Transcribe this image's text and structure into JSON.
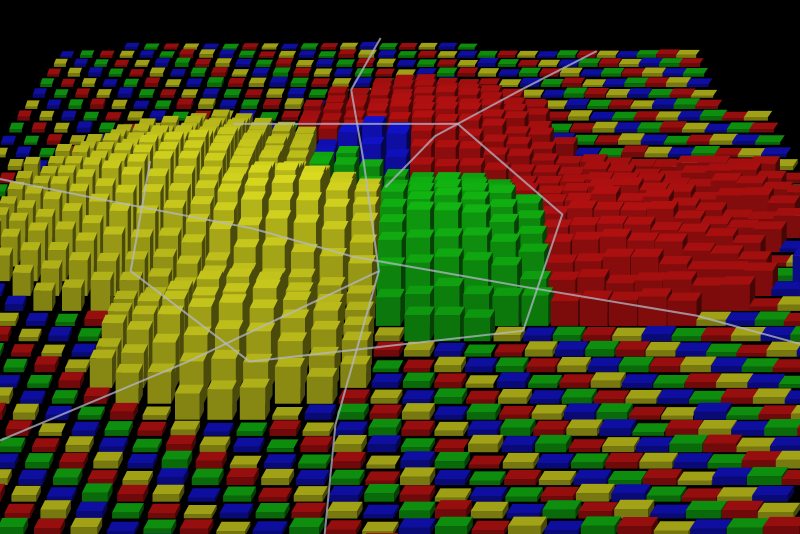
{
  "view": {
    "type": "3d-extruded-grid-map",
    "background": "#000000",
    "legend": "none",
    "grid_lines": "off"
  },
  "palette": {
    "red": "#c41212",
    "green": "#12b812",
    "blue": "#1212d0",
    "yellow": "#d2d21e",
    "road": "#b4b8c8"
  },
  "map_data": {
    "rows": 38,
    "cols": 34,
    "height_unit": "relative",
    "hotspots": [
      {
        "name": "yellow-ridge-west",
        "row": 16,
        "col": 9,
        "radius": 4.6,
        "peak": 0.75,
        "color": "yellow"
      },
      {
        "name": "yellow-ridge-central",
        "row": 19,
        "col": 13,
        "radius": 3.6,
        "peak": 0.9,
        "color": "yellow"
      },
      {
        "name": "yellow-ridge-south",
        "row": 25,
        "col": 12,
        "radius": 3.0,
        "peak": 0.6,
        "color": "yellow"
      },
      {
        "name": "green-band-east",
        "row": 19,
        "col": 19,
        "radius": 3.4,
        "peak": 0.75,
        "color": "green"
      },
      {
        "name": "green-band-north",
        "row": 15,
        "col": 15,
        "radius": 2.6,
        "peak": 0.55,
        "color": "green"
      },
      {
        "name": "blue-core",
        "row": 13,
        "col": 16,
        "radius": 1.8,
        "peak": 0.7,
        "color": "blue"
      },
      {
        "name": "red-belt-north",
        "row": 11,
        "col": 18,
        "radius": 4.2,
        "peak": 0.5,
        "color": "red"
      },
      {
        "name": "red-belt-east",
        "row": 18,
        "col": 25,
        "radius": 4.5,
        "peak": 0.45,
        "color": "red"
      },
      {
        "name": "red-belt-far-east",
        "row": 15,
        "col": 30,
        "radius": 3.0,
        "peak": 0.3,
        "color": "red"
      },
      {
        "name": "blue-far-east",
        "row": 21,
        "col": 33,
        "radius": 1.2,
        "peak": 0.45,
        "color": "blue"
      }
    ],
    "roads": [
      {
        "name": "road-north",
        "points": [
          [
            0,
            16
          ],
          [
            6,
            15
          ],
          [
            12,
            16
          ],
          [
            20,
            17
          ],
          [
            30,
            16
          ],
          [
            37,
            16
          ]
        ]
      },
      {
        "name": "road-west",
        "points": [
          [
            13,
            0
          ],
          [
            15,
            6
          ],
          [
            17,
            12
          ],
          [
            19,
            16
          ]
        ]
      },
      {
        "name": "road-east",
        "points": [
          [
            19,
            16
          ],
          [
            21,
            22
          ],
          [
            23,
            28
          ],
          [
            26,
            33
          ]
        ]
      },
      {
        "name": "road-northeast",
        "points": [
          [
            2,
            27
          ],
          [
            6,
            23
          ],
          [
            10,
            19
          ],
          [
            14,
            17
          ]
        ]
      },
      {
        "name": "road-southwest",
        "points": [
          [
            20,
            17
          ],
          [
            26,
            11
          ],
          [
            31,
            6
          ],
          [
            37,
            3
          ]
        ]
      },
      {
        "name": "road-ring",
        "points": [
          [
            9,
            10
          ],
          [
            9,
            20
          ],
          [
            16,
            24
          ],
          [
            24,
            22
          ],
          [
            26,
            13
          ],
          [
            20,
            8
          ],
          [
            12,
            7
          ]
        ]
      }
    ]
  }
}
